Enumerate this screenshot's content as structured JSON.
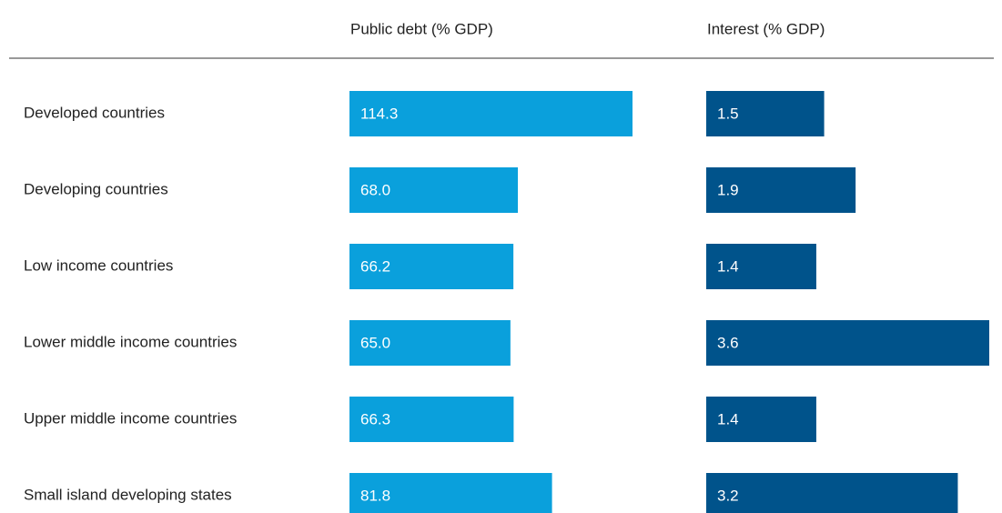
{
  "chart_data": {
    "type": "bar",
    "orientation": "horizontal",
    "categories": [
      "Developed countries",
      "Developing countries",
      "Low income countries",
      "Lower middle income countries",
      "Upper middle income countries",
      "Small island developing states"
    ],
    "series": [
      {
        "name": "Public debt (% GDP)",
        "color": "#0aa0dc",
        "values": [
          114.3,
          68.0,
          66.2,
          65.0,
          66.3,
          81.8
        ],
        "value_labels": [
          "114.3",
          "68.0",
          "66.2",
          "65.0",
          "66.3",
          "81.8"
        ]
      },
      {
        "name": "Interest (% GDP)",
        "color": "#00538b",
        "values": [
          1.5,
          1.9,
          1.4,
          3.6,
          1.4,
          3.2
        ],
        "value_labels": [
          "1.5",
          "1.9",
          "1.4",
          "3.6",
          "1.4",
          "3.2"
        ]
      }
    ]
  }
}
